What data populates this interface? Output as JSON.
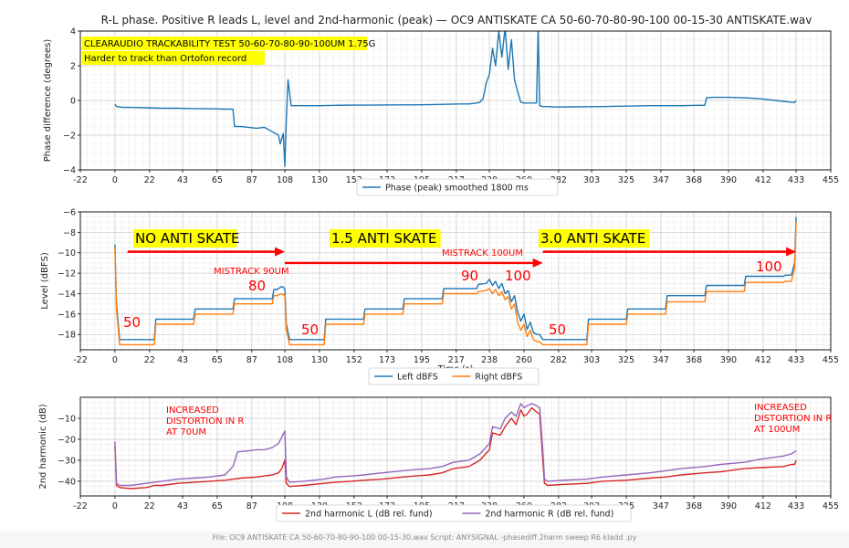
{
  "figure": {
    "title": "R-L phase. Positive R leads L, level and 2nd-harmonic (peak) — OC9 ANTISKATE CA 50-60-70-80-90-100 00-15-30 ANTISKATE.wav",
    "footer": "File: OC9 ANTISKATE CA 50-60-70-80-90-100 00-15-30.wav    Script: ANYSIGNAL -phasediff 2harm sweep  R6 kladd .py"
  },
  "chart_data": [
    {
      "type": "line",
      "ylabel": "Phase difference (degrees)",
      "xlim": [
        -22,
        455
      ],
      "ylim": [
        -4,
        4
      ],
      "xticks": [
        "-22",
        "0",
        "22",
        "43",
        "65",
        "87",
        "108",
        "130",
        "152",
        "173",
        "195",
        "217",
        "238",
        "260",
        "282",
        "303",
        "325",
        "347",
        "368",
        "390",
        "412",
        "433",
        "455"
      ],
      "yticks": [
        "-4",
        "-2",
        "0",
        "2",
        "4"
      ],
      "grid": true,
      "legend_position": "bottom-center",
      "colors": {
        "phase": "#1f77b4"
      },
      "series": [
        {
          "name": "Phase (peak) smoothed 1800 ms",
          "x": [
            0,
            1,
            5,
            10,
            20,
            30,
            40,
            50,
            60,
            70,
            75,
            76,
            80,
            85,
            90,
            95,
            100,
            104,
            105,
            106,
            107,
            108,
            109,
            110,
            112,
            115,
            120,
            130,
            140,
            150,
            160,
            170,
            180,
            190,
            200,
            210,
            220,
            225,
            230,
            232,
            234,
            236,
            238,
            240,
            242,
            244,
            246,
            248,
            250,
            252,
            254,
            256,
            258,
            260,
            262,
            264,
            266,
            268,
            269,
            270,
            272,
            275,
            280,
            290,
            300,
            310,
            320,
            330,
            340,
            350,
            360,
            370,
            375,
            376,
            380,
            390,
            400,
            410,
            420,
            425,
            430,
            432,
            433
          ],
          "y": [
            -0.2,
            -0.35,
            -0.4,
            -0.4,
            -0.42,
            -0.45,
            -0.45,
            -0.47,
            -0.48,
            -0.5,
            -0.5,
            -1.5,
            -1.5,
            -1.55,
            -1.6,
            -1.55,
            -1.8,
            -2.0,
            -2.5,
            -2.2,
            -1.9,
            -3.8,
            -1.0,
            1.2,
            -0.3,
            -0.3,
            -0.3,
            -0.3,
            -0.28,
            -0.27,
            -0.27,
            -0.26,
            -0.25,
            -0.25,
            -0.24,
            -0.22,
            -0.2,
            -0.2,
            -0.15,
            -0.1,
            0.1,
            1.0,
            1.5,
            3.0,
            2.0,
            4.0,
            2.5,
            4.2,
            1.8,
            3.5,
            1.2,
            0.5,
            -0.1,
            -0.15,
            -0.15,
            -0.15,
            -0.15,
            -0.15,
            4.2,
            -0.3,
            -0.35,
            -0.35,
            -0.38,
            -0.37,
            -0.36,
            -0.35,
            -0.33,
            -0.32,
            -0.3,
            -0.3,
            -0.3,
            -0.28,
            -0.28,
            0.15,
            0.18,
            0.18,
            0.15,
            0.1,
            0.0,
            -0.05,
            -0.1,
            -0.12,
            0.0
          ]
        }
      ],
      "annotations": [
        {
          "text": "CLEARAUDIO TRACKABILITY TEST 50-60-70-80-90-100UM 1.75G",
          "background": "#ffff00"
        },
        {
          "text": "Harder to track than Ortofon record",
          "background": "#ffff00"
        }
      ]
    },
    {
      "type": "line",
      "ylabel": "Level (dBFS)",
      "xlabel": "Time (s)",
      "xlim": [
        -22,
        455
      ],
      "ylim": [
        -19.5,
        -6
      ],
      "xticks": [
        "-22",
        "0",
        "22",
        "43",
        "65",
        "87",
        "108",
        "130",
        "152",
        "173",
        "195",
        "217",
        "238",
        "260",
        "282",
        "303",
        "325",
        "347",
        "368",
        "390",
        "412",
        "433",
        "455"
      ],
      "yticks": [
        "-18",
        "-16",
        "-14",
        "-12",
        "-10",
        "-8",
        "-6"
      ],
      "grid": true,
      "legend_position": "bottom-center",
      "colors": {
        "left": "#1f77b4",
        "right": "#ff7f0e"
      },
      "series": [
        {
          "name": "Left dBFS",
          "x": [
            0,
            1,
            3,
            25,
            26,
            28,
            50,
            51,
            53,
            75,
            76,
            78,
            100,
            101,
            103,
            106,
            108,
            109,
            111,
            133,
            134,
            136,
            158,
            159,
            161,
            183,
            184,
            186,
            208,
            209,
            211,
            230,
            231,
            236,
            238,
            240,
            242,
            244,
            246,
            248,
            250,
            252,
            254,
            256,
            258,
            260,
            262,
            264,
            266,
            268,
            270,
            272,
            273,
            275,
            300,
            301,
            303,
            325,
            326,
            328,
            350,
            351,
            353,
            375,
            376,
            378,
            400,
            401,
            403,
            425,
            426,
            428,
            430,
            432,
            433
          ],
          "y": [
            -9.2,
            -15,
            -18.5,
            -18.5,
            -16.5,
            -16.5,
            -16.5,
            -15.5,
            -15.5,
            -15.5,
            -14.5,
            -14.5,
            -14.5,
            -13.6,
            -13.6,
            -13.3,
            -13.5,
            -17,
            -18.5,
            -18.5,
            -16.5,
            -16.5,
            -16.5,
            -15.5,
            -15.5,
            -15.5,
            -14.5,
            -14.5,
            -14.5,
            -13.5,
            -13.5,
            -13.5,
            -13.1,
            -13,
            -12.6,
            -13.2,
            -12.8,
            -13.5,
            -13,
            -14,
            -13.7,
            -14.8,
            -14.2,
            -15.8,
            -16.7,
            -16,
            -17.5,
            -16.8,
            -17.8,
            -18,
            -18,
            -18.5,
            -18.5,
            -18.5,
            -18.5,
            -16.5,
            -16.5,
            -16.5,
            -15.5,
            -15.5,
            -15.5,
            -14.2,
            -14.2,
            -14.2,
            -13.2,
            -13.2,
            -13.2,
            -12.3,
            -12.3,
            -12.3,
            -12.2,
            -12.2,
            -12.2,
            -11,
            -6.5
          ]
        },
        {
          "name": "Right dBFS",
          "x": [
            0,
            1,
            3,
            25,
            26,
            28,
            50,
            51,
            53,
            75,
            76,
            78,
            100,
            101,
            103,
            106,
            108,
            109,
            111,
            133,
            134,
            136,
            158,
            159,
            161,
            183,
            184,
            186,
            208,
            209,
            211,
            230,
            231,
            236,
            238,
            240,
            242,
            244,
            246,
            248,
            250,
            252,
            254,
            256,
            258,
            260,
            262,
            264,
            266,
            268,
            270,
            272,
            273,
            275,
            300,
            301,
            303,
            325,
            326,
            328,
            350,
            351,
            353,
            375,
            376,
            378,
            400,
            401,
            403,
            425,
            426,
            428,
            430,
            432,
            433
          ],
          "y": [
            -9.5,
            -15.5,
            -19,
            -19,
            -17,
            -17,
            -17,
            -16,
            -16,
            -16,
            -15,
            -15,
            -15,
            -14.2,
            -14.2,
            -14,
            -14.2,
            -17.5,
            -19,
            -19,
            -17,
            -17,
            -17,
            -16,
            -16,
            -16,
            -15,
            -15,
            -15,
            -14,
            -14,
            -14,
            -13.8,
            -13.7,
            -13.5,
            -14,
            -13.6,
            -14.2,
            -13.8,
            -14.6,
            -14.3,
            -15.5,
            -15,
            -16.8,
            -17.6,
            -17,
            -18.2,
            -17.6,
            -18.5,
            -18.7,
            -18.7,
            -19,
            -19,
            -19,
            -19,
            -17,
            -17,
            -17,
            -16,
            -16,
            -16,
            -14.8,
            -14.8,
            -14.8,
            -13.8,
            -13.8,
            -13.8,
            -12.9,
            -12.9,
            -12.9,
            -12.8,
            -12.8,
            -12.8,
            -11.5,
            -7
          ]
        }
      ],
      "annotations": [
        {
          "text": "NO ANTI SKATE",
          "background": "#ffff00"
        },
        {
          "text": "1.5 ANTI SKATE",
          "background": "#ffff00"
        },
        {
          "text": "3.0 ANTI SKATE",
          "background": "#ffff00"
        },
        {
          "text": "MISTRACK 90UM",
          "color": "#ff0000"
        },
        {
          "text": "MISTRACK 100UM",
          "color": "#ff0000"
        },
        {
          "text": "50",
          "color": "#ff0000"
        },
        {
          "text": "80",
          "color": "#ff0000"
        },
        {
          "text": "50",
          "color": "#ff0000"
        },
        {
          "text": "90",
          "color": "#ff0000"
        },
        {
          "text": "100",
          "color": "#ff0000"
        },
        {
          "text": "50",
          "color": "#ff0000"
        },
        {
          "text": "100",
          "color": "#ff0000"
        }
      ],
      "arrows": [
        {
          "from": 8,
          "to": 108,
          "level": -9.9,
          "color": "#ff0000"
        },
        {
          "from": 108,
          "to": 272,
          "level": -11.0,
          "color": "#ff0000"
        },
        {
          "from": 272,
          "to": 433,
          "level": -9.9,
          "color": "#ff0000"
        }
      ]
    },
    {
      "type": "line",
      "ylabel": "2nd harmonic (dB)",
      "xlim": [
        -22,
        455
      ],
      "ylim": [
        -47,
        0
      ],
      "xticks": [
        "-22",
        "0",
        "22",
        "43",
        "65",
        "87",
        "108",
        "130",
        "152",
        "173",
        "195",
        "217",
        "238",
        "260",
        "282",
        "303",
        "325",
        "347",
        "368",
        "390",
        "412",
        "433",
        "455"
      ],
      "yticks": [
        "-40",
        "-30",
        "-20",
        "-10"
      ],
      "grid": true,
      "legend_position": "bottom-center",
      "colors": {
        "L": "#d62728",
        "R": "#9467bd"
      },
      "series": [
        {
          "name": "2nd harmonic L (dB rel. fund)",
          "x": [
            0,
            1,
            3,
            10,
            20,
            25,
            30,
            40,
            50,
            60,
            70,
            80,
            90,
            100,
            104,
            106,
            108,
            109,
            111,
            120,
            133,
            140,
            150,
            158,
            170,
            183,
            190,
            200,
            208,
            215,
            225,
            232,
            238,
            240,
            245,
            248,
            252,
            255,
            258,
            260,
            262,
            265,
            268,
            270,
            272,
            273,
            275,
            285,
            300,
            310,
            325,
            340,
            350,
            360,
            375,
            385,
            400,
            410,
            425,
            430,
            432,
            433
          ],
          "y": [
            -23,
            -42,
            -43,
            -43.5,
            -43,
            -42,
            -42,
            -41,
            -40.5,
            -40,
            -39.5,
            -38.5,
            -38,
            -37,
            -36,
            -34,
            -30,
            -41,
            -42.5,
            -42,
            -41,
            -40.5,
            -40,
            -39.5,
            -39,
            -38,
            -37.5,
            -37,
            -36,
            -34,
            -33,
            -30,
            -25,
            -17,
            -18,
            -14,
            -10,
            -13,
            -6,
            -9,
            -8,
            -5,
            -7,
            -8,
            -30,
            -41,
            -42,
            -41.5,
            -41,
            -40,
            -39.5,
            -38.5,
            -38,
            -37,
            -36,
            -35.5,
            -34,
            -33.5,
            -33,
            -32,
            -32,
            -30
          ]
        },
        {
          "name": "2nd harmonic R (dB rel. fund)",
          "x": [
            0,
            1,
            3,
            10,
            20,
            25,
            30,
            40,
            50,
            60,
            70,
            75,
            78,
            85,
            90,
            95,
            100,
            104,
            106,
            108,
            109,
            111,
            120,
            133,
            140,
            150,
            158,
            170,
            183,
            190,
            200,
            208,
            215,
            225,
            232,
            238,
            240,
            245,
            248,
            252,
            255,
            258,
            260,
            262,
            265,
            268,
            270,
            272,
            273,
            275,
            285,
            300,
            310,
            325,
            340,
            350,
            360,
            375,
            385,
            400,
            410,
            425,
            430,
            432,
            433
          ],
          "y": [
            -21,
            -41,
            -42,
            -42,
            -41,
            -40.5,
            -40,
            -39,
            -38.5,
            -38,
            -37,
            -33,
            -26,
            -25.5,
            -25,
            -25,
            -24,
            -22,
            -19,
            -16,
            -38,
            -40.5,
            -40,
            -39,
            -38,
            -37.5,
            -37,
            -36,
            -35,
            -34.5,
            -34,
            -33,
            -31,
            -30,
            -27,
            -22,
            -14,
            -15,
            -10,
            -7,
            -9,
            -3,
            -5,
            -4,
            -3,
            -4,
            -5,
            -25,
            -39,
            -40,
            -39.5,
            -39,
            -38,
            -37,
            -36,
            -35,
            -34,
            -33,
            -32,
            -31,
            -29.5,
            -28,
            -27,
            -26,
            -25.5
          ]
        }
      ],
      "annotations": [
        {
          "text": "INCREASED\nDISTORTION IN R\nAT  70UM",
          "color": "#ff0000"
        },
        {
          "text": "INCREASED\nDISTORTION IN R\nAT  100UM",
          "color": "#ff0000"
        }
      ]
    }
  ]
}
